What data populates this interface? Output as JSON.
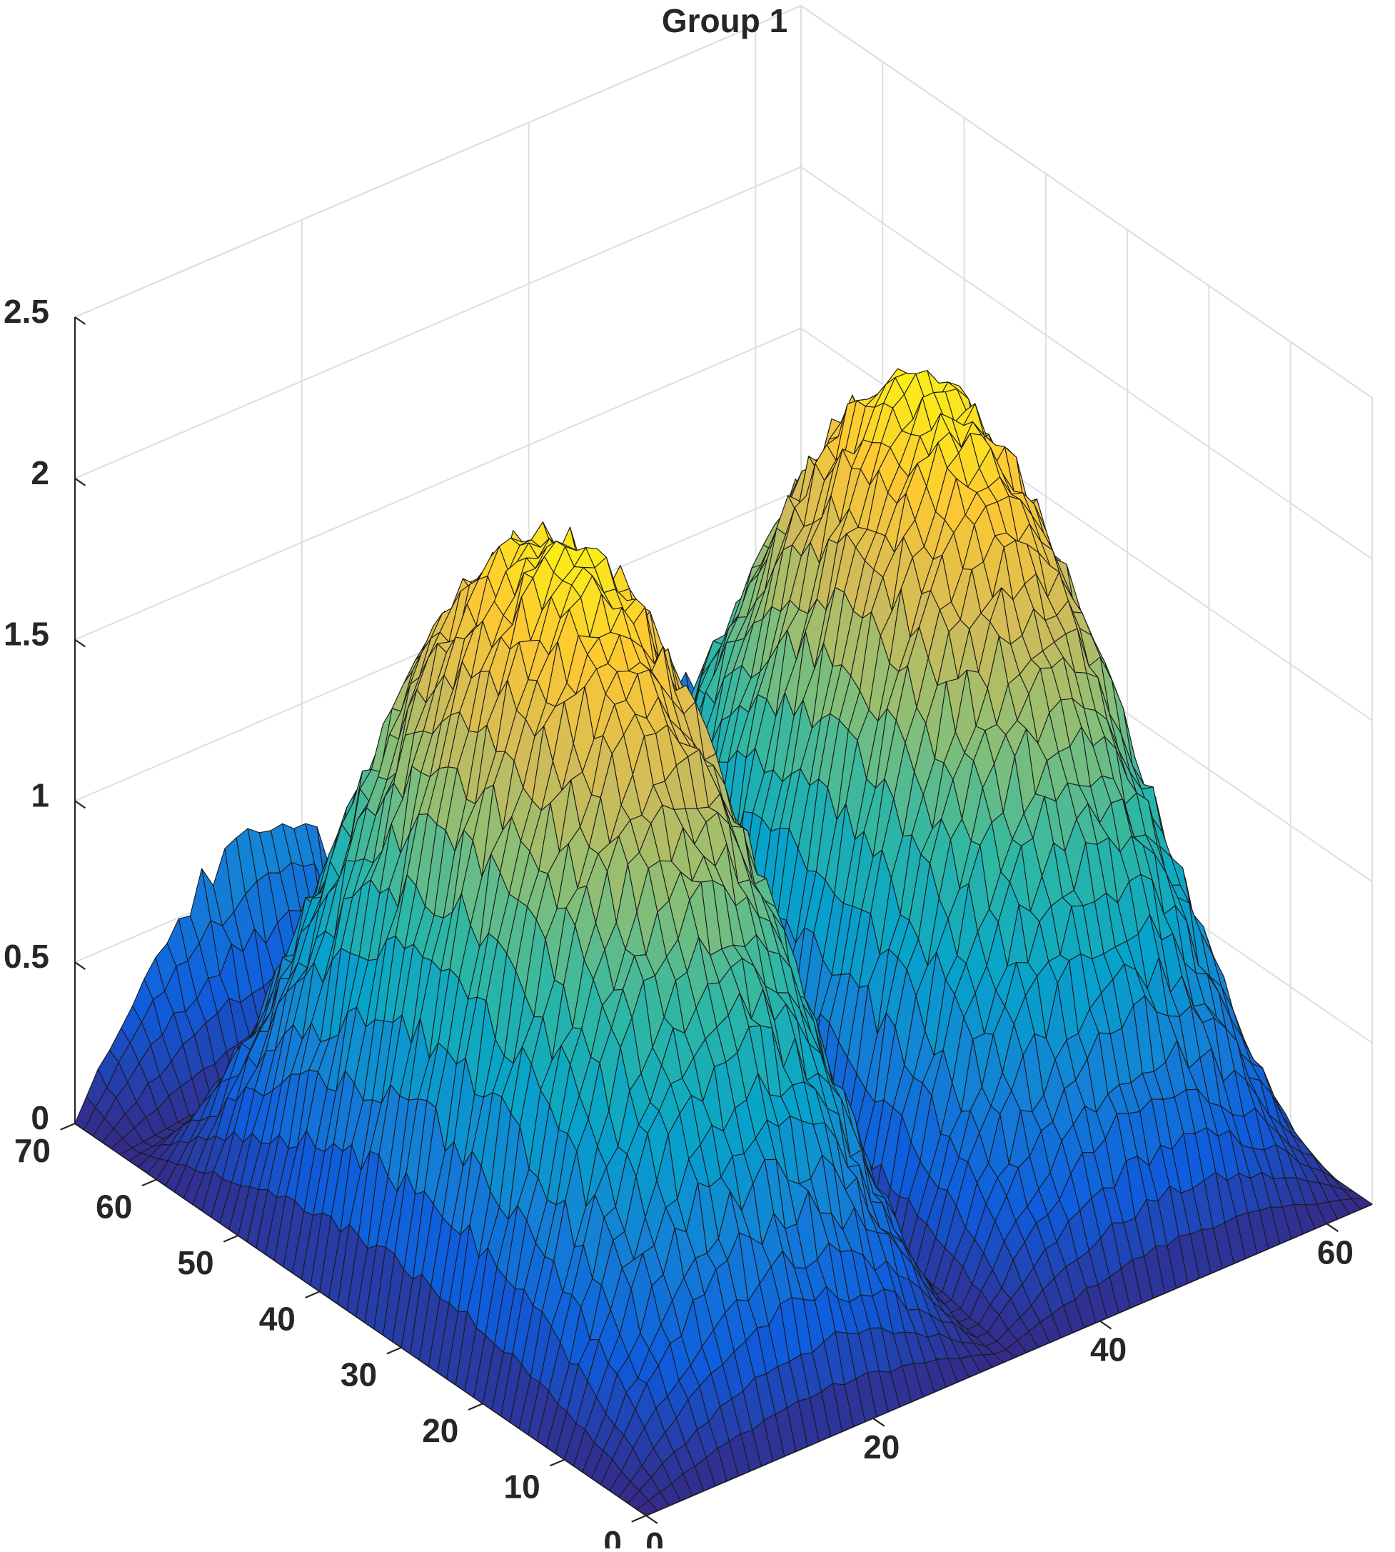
{
  "chart_data": {
    "type": "surface",
    "title": "Group 1",
    "xlabel": "",
    "ylabel": "",
    "zlabel": "",
    "xlim": [
      0,
      64
    ],
    "ylim": [
      0,
      70
    ],
    "zlim": [
      0,
      2.5
    ],
    "grid": true,
    "colormap": "parula",
    "x_ticks": [
      0,
      20,
      40,
      60
    ],
    "y_ticks": [
      0,
      10,
      20,
      30,
      40,
      50,
      60,
      70
    ],
    "z_ticks": [
      0,
      0.5,
      1,
      1.5,
      2,
      2.5
    ],
    "x_tick_labels": [
      "0",
      "20",
      "40",
      "60"
    ],
    "y_tick_labels": [
      "0",
      "10",
      "20",
      "30",
      "40",
      "50",
      "60",
      "70"
    ],
    "z_tick_labels": [
      "0",
      "0.5",
      "1",
      "1.5",
      "2",
      "2.5"
    ],
    "grid_size": [
      64,
      64
    ],
    "surface_function": "z = 2.2 * |sin(pi*y/64)| * |sin(pi*x/32)| + noise",
    "peak_z": 2.3,
    "noise_amplitude": 0.12
  },
  "colors": {
    "parula": [
      "#352a87",
      "#0f5cdd",
      "#1481d6",
      "#06a4ca",
      "#2eb7a4",
      "#87bf77",
      "#d1bb59",
      "#fec832",
      "#f9fb0e"
    ],
    "edge": "#1a1a1a",
    "grid": "#dedede",
    "axis": "#262626"
  }
}
